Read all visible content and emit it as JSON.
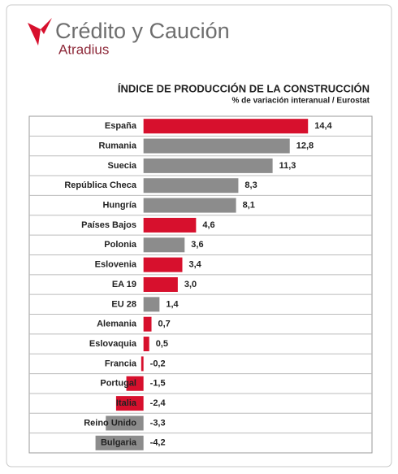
{
  "header": {
    "brand": "Crédito y Caución",
    "sub_brand": "Atradius"
  },
  "chart_data": {
    "type": "barh",
    "title": "ÍNDICE DE PRODUCCIÓN  DE LA CONSTRUCCIÓN",
    "subtitle": "% de variación interanual / Eurostat",
    "categories": [
      "España",
      "Rumania",
      "Suecia",
      "República Checa",
      "Hungría",
      "Países Bajos",
      "Polonia",
      "Eslovenia",
      "EA 19",
      "EU 28",
      "Alemania",
      "Eslovaquia",
      "Francia",
      "Portugal",
      "Italia",
      "Reino Unido",
      "Bulgaria"
    ],
    "values": [
      14.4,
      12.8,
      11.3,
      8.3,
      8.1,
      4.6,
      3.6,
      3.4,
      3.0,
      1.4,
      0.7,
      0.5,
      -0.2,
      -1.5,
      -2.4,
      -3.3,
      -4.2
    ],
    "value_labels": [
      "14,4",
      "12,8",
      "11,3",
      "8,3",
      "8,1",
      "4,6",
      "3,6",
      "3,4",
      "3,0",
      "1,4",
      "0,7",
      "0,5",
      "-0,2",
      "-1,5",
      "-2,4",
      "-3,3",
      "-4,2"
    ],
    "colors": [
      "#d7102d",
      "#8c8c8c",
      "#8c8c8c",
      "#8c8c8c",
      "#8c8c8c",
      "#d7102d",
      "#8c8c8c",
      "#d7102d",
      "#d7102d",
      "#8c8c8c",
      "#d7102d",
      "#d7102d",
      "#d7102d",
      "#d7102d",
      "#d7102d",
      "#8c8c8c",
      "#8c8c8c"
    ],
    "xlim": [
      -10,
      20
    ]
  }
}
